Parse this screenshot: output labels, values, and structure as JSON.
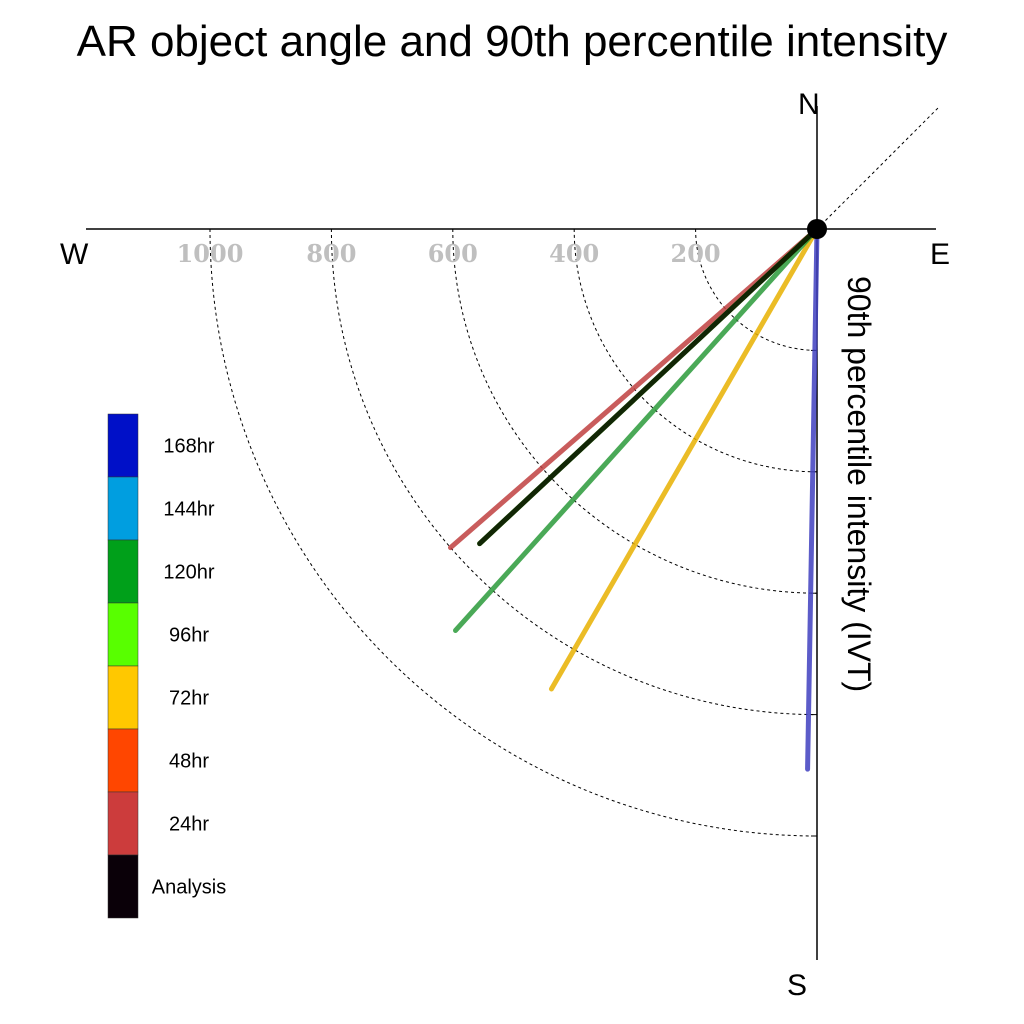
{
  "chart_data": {
    "type": "polar-vector",
    "title": "AR object angle and 90th percentile intensity",
    "ylabel": "90th percentile intensity (IVT)",
    "compass": {
      "north": "N",
      "south": "S",
      "east": "E",
      "west": "W"
    },
    "radial_ticks": [
      1000,
      800,
      600,
      400,
      200
    ],
    "radial_range": [
      0,
      1000
    ],
    "grid": true,
    "legend_position": "left",
    "legend": [
      {
        "label": "168hr",
        "color": "#0010c8"
      },
      {
        "label": "144hr",
        "color": "#009ee0"
      },
      {
        "label": "120hr",
        "color": "#00a01a"
      },
      {
        "label": "96hr",
        "color": "#58ff00"
      },
      {
        "label": "72hr",
        "color": "#ffc800"
      },
      {
        "label": "48hr",
        "color": "#ff4600"
      },
      {
        "label": "24hr",
        "color": "#cc3c3c"
      },
      {
        "label": "Analysis",
        "color": "#0a0008"
      }
    ],
    "series": [
      {
        "name": "168hr",
        "color": "#4040c0",
        "angle_deg": 181,
        "intensity": 890
      },
      {
        "name": "72hr",
        "color": "#e8b000",
        "angle_deg": 210,
        "intensity": 875
      },
      {
        "name": "120hr",
        "color": "#2a9a3a",
        "angle_deg": 222,
        "intensity": 890
      },
      {
        "name": "24hr",
        "color": "#c04040",
        "angle_deg": 229,
        "intensity": 800
      },
      {
        "name": "96hr",
        "color": "#58ff00",
        "angle_deg": 227,
        "intensity": 760
      },
      {
        "name": "Analysis",
        "color": "#000000",
        "angle_deg": 227,
        "intensity": 760
      }
    ]
  }
}
